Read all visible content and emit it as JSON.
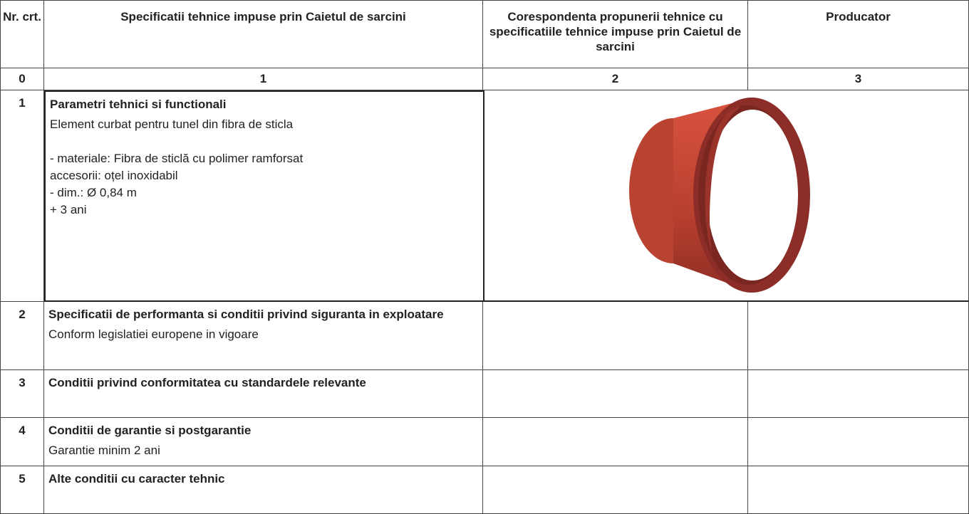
{
  "header": [
    "Nr. crt.",
    "Specificatii tehnice impuse prin Caietul de sarcini",
    "Corespondenta propunerii tehnice cu specificatiile tehnice impuse prin Caietul de sarcini",
    "Producator"
  ],
  "column_numbers": [
    "0",
    "1",
    "2",
    "3"
  ],
  "rows": [
    {
      "nr": "1",
      "title": "Parametri tehnici si functionali",
      "text": [
        "Element curbat pentru tunel din fibra de sticla"
      ],
      "details": [
        "- materiale: Fibra de sticlă cu polimer ramforsat",
        "accesorii: oțel inoxidabil",
        "- dim.: Ø 0,84 m",
        "+ 3 ani"
      ]
    },
    {
      "nr": "2",
      "title": "Specificatii de performanta si conditii privind siguranta in exploatare",
      "text": [
        "Conform legislatiei europene in vigoare"
      ]
    },
    {
      "nr": "3",
      "title": "Conditii privind conformitatea cu standardele relevante"
    },
    {
      "nr": "4",
      "title": "Conditii de garantie si postgarantie",
      "text": [
        "Garantie minim 2 ani"
      ]
    },
    {
      "nr": "5",
      "title": "Alte conditii cu caracter tehnic"
    }
  ]
}
